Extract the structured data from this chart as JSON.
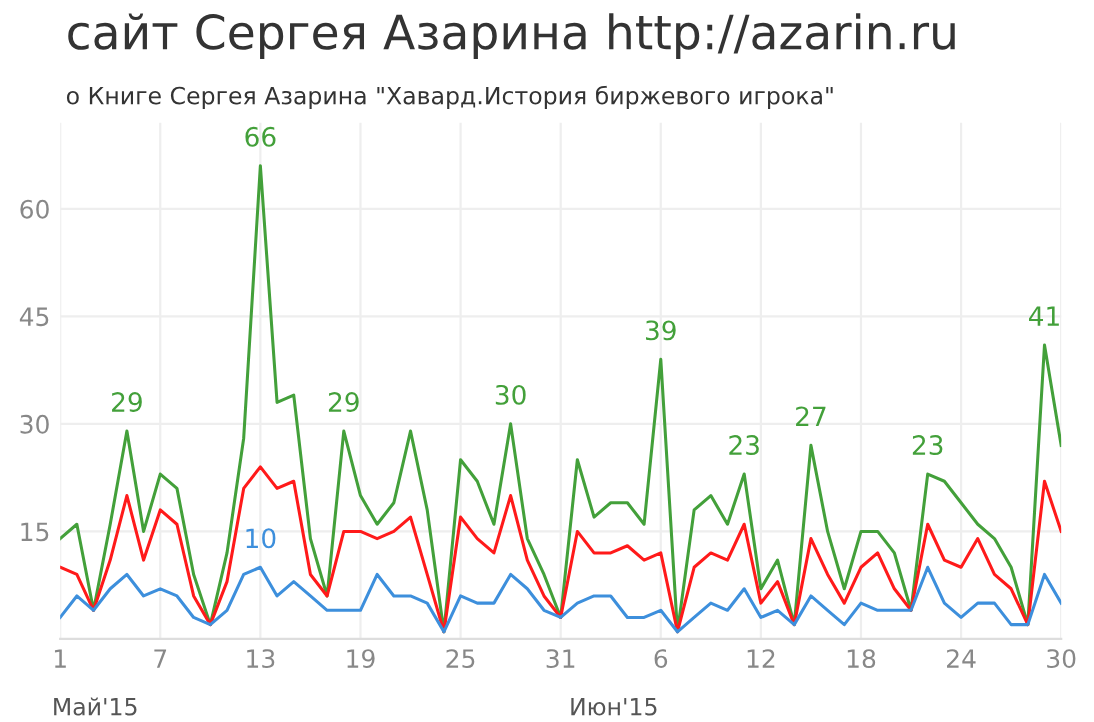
{
  "chart_data": {
    "type": "line",
    "title": "сайт Сергея Азарина http://azarin.ru",
    "subtitle": "о Книге Сергея Азарина \"Хавард.История биржевого игрока\"",
    "x": [
      "2015-05-01",
      "2015-05-02",
      "2015-05-03",
      "2015-05-04",
      "2015-05-05",
      "2015-05-06",
      "2015-05-07",
      "2015-05-08",
      "2015-05-09",
      "2015-05-10",
      "2015-05-11",
      "2015-05-12",
      "2015-05-13",
      "2015-05-14",
      "2015-05-15",
      "2015-05-16",
      "2015-05-17",
      "2015-05-18",
      "2015-05-19",
      "2015-05-20",
      "2015-05-21",
      "2015-05-22",
      "2015-05-23",
      "2015-05-24",
      "2015-05-25",
      "2015-05-26",
      "2015-05-27",
      "2015-05-28",
      "2015-05-29",
      "2015-05-30",
      "2015-05-31",
      "2015-06-01",
      "2015-06-02",
      "2015-06-03",
      "2015-06-04",
      "2015-06-05",
      "2015-06-06",
      "2015-06-07",
      "2015-06-08",
      "2015-06-09",
      "2015-06-10",
      "2015-06-11",
      "2015-06-12",
      "2015-06-13",
      "2015-06-14",
      "2015-06-15",
      "2015-06-16",
      "2015-06-17",
      "2015-06-18",
      "2015-06-19",
      "2015-06-20",
      "2015-06-21",
      "2015-06-22",
      "2015-06-23",
      "2015-06-24",
      "2015-06-25",
      "2015-06-26",
      "2015-06-27",
      "2015-06-28",
      "2015-06-29",
      "2015-06-30"
    ],
    "series": [
      {
        "color": "#43a03a",
        "values": [
          14,
          16,
          4,
          16,
          29,
          15,
          23,
          21,
          9,
          2,
          12,
          28,
          66,
          33,
          34,
          14,
          6,
          29,
          20,
          16,
          19,
          29,
          18,
          1,
          25,
          22,
          16,
          30,
          14,
          9,
          3,
          25,
          17,
          19,
          19,
          16,
          39,
          1,
          18,
          20,
          16,
          23,
          7,
          11,
          2,
          27,
          15,
          7,
          15,
          15,
          12,
          4,
          23,
          22,
          19,
          16,
          14,
          10,
          2,
          41,
          27
        ]
      },
      {
        "color": "#ff1a1a",
        "values": [
          10,
          9,
          4,
          11,
          20,
          11,
          18,
          16,
          6,
          2,
          8,
          21,
          24,
          21,
          22,
          9,
          6,
          15,
          15,
          14,
          15,
          17,
          9,
          1,
          17,
          14,
          12,
          20,
          11,
          6,
          3,
          15,
          12,
          12,
          13,
          11,
          12,
          1,
          10,
          12,
          11,
          16,
          5,
          8,
          2,
          14,
          9,
          5,
          10,
          12,
          7,
          4,
          16,
          11,
          10,
          14,
          9,
          7,
          2,
          22,
          15
        ]
      },
      {
        "color": "#3d8fdc",
        "values": [
          3,
          6,
          4,
          7,
          9,
          6,
          7,
          6,
          3,
          2,
          4,
          9,
          10,
          6,
          8,
          6,
          4,
          4,
          4,
          9,
          6,
          6,
          5,
          1,
          6,
          5,
          5,
          9,
          7,
          4,
          3,
          5,
          6,
          6,
          3,
          3,
          4,
          1,
          3,
          5,
          4,
          7,
          3,
          4,
          2,
          6,
          4,
          2,
          5,
          4,
          4,
          4,
          10,
          5,
          3,
          5,
          5,
          2,
          2,
          9,
          5
        ]
      }
    ],
    "xlim": [
      "2015-05-01",
      "2015-06-30"
    ],
    "xticks": [
      {
        "value": "2015-05-01",
        "label": "1"
      },
      {
        "value": "2015-05-07",
        "label": "7"
      },
      {
        "value": "2015-05-13",
        "label": "13"
      },
      {
        "value": "2015-05-19",
        "label": "19"
      },
      {
        "value": "2015-05-25",
        "label": "25"
      },
      {
        "value": "2015-05-31",
        "label": "31"
      },
      {
        "value": "2015-06-06",
        "label": "6"
      },
      {
        "value": "2015-06-12",
        "label": "12"
      },
      {
        "value": "2015-06-18",
        "label": "18"
      },
      {
        "value": "2015-06-24",
        "label": "24"
      },
      {
        "value": "2015-06-30",
        "label": "30"
      }
    ],
    "ylim": [
      0,
      72
    ],
    "yticks": [
      15,
      30,
      45,
      60
    ],
    "grid": true,
    "annotations": [
      {
        "text": "29",
        "x": "2015-05-05",
        "y": 29
      },
      {
        "text": "66",
        "x": "2015-05-13",
        "y": 66
      },
      {
        "text": "10",
        "x": "2015-05-13",
        "y": 10
      },
      {
        "text": "29",
        "x": "2015-05-18",
        "y": 29
      },
      {
        "text": "30",
        "x": "2015-05-28",
        "y": 30
      },
      {
        "text": "39",
        "x": "2015-06-06",
        "y": 39
      },
      {
        "text": "23",
        "x": "2015-06-11",
        "y": 23
      },
      {
        "text": "27",
        "x": "2015-06-15",
        "y": 27
      },
      {
        "text": "23",
        "x": "2015-06-22",
        "y": 23
      },
      {
        "text": "41",
        "x": "2015-06-29",
        "y": 41
      },
      "Май'15",
      "Июн'15"
    ]
  }
}
